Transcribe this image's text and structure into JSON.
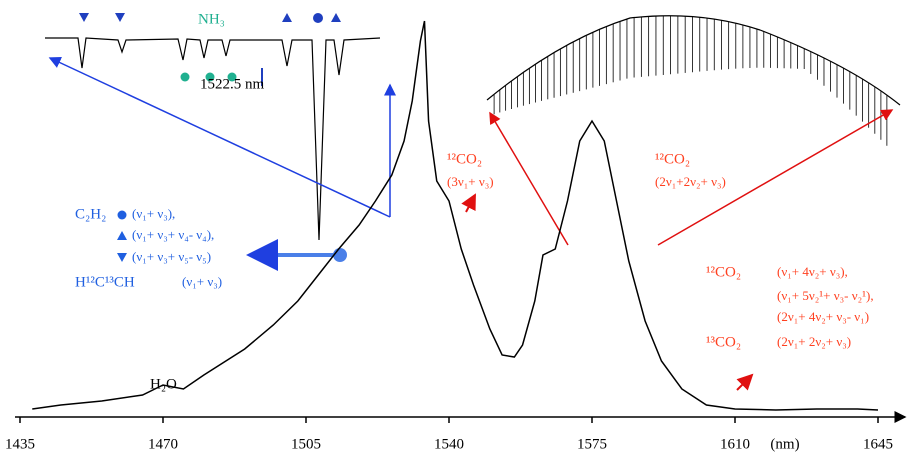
{
  "chart_data": {
    "type": "line",
    "x_label": "(nm)",
    "xlim": [
      1435,
      1645
    ],
    "xticks": [
      1435,
      1470,
      1505,
      1540,
      1575,
      1610,
      1645
    ],
    "ylim": [
      0,
      100
    ],
    "series": [
      {
        "color": "#000000",
        "x": [
          1438,
          1445,
          1455,
          1465,
          1470,
          1475,
          1480,
          1490,
          1497,
          1503,
          1508,
          1513,
          1518,
          1522,
          1526,
          1529,
          1531,
          1533,
          1534,
          1535,
          1537,
          1540,
          1543,
          1546,
          1550,
          1553,
          1556,
          1558,
          1561,
          1563,
          1566,
          1569,
          1572,
          1575,
          1578,
          1581,
          1584,
          1588,
          1592,
          1597,
          1603,
          1610,
          1620,
          1630,
          1640,
          1645
        ],
        "values": [
          2,
          3,
          4,
          5.5,
          8,
          7,
          10.5,
          17,
          23,
          29,
          35.5,
          42,
          48,
          54,
          60.5,
          69,
          79,
          94,
          99,
          74,
          59,
          54,
          42,
          33,
          22,
          15.5,
          15,
          18,
          29,
          40.5,
          42,
          54,
          69,
          74,
          69,
          54,
          39,
          24,
          14,
          7,
          3,
          2,
          1.75,
          2,
          2,
          1.75
        ]
      }
    ],
    "annotations": [
      "NH₃",
      "1522.5 nm",
      "C₂H₂",
      "(ν₁+ ν₃),",
      "(ν₁+ ν₃+ ν₄- ν₄),",
      "(ν₁+ ν₃+ ν₅- ν₅)",
      "H¹²C¹³CH",
      "(ν₁+ ν₃)",
      "H₂O",
      "¹²CO₂",
      "(3ν₁+ ν₃)",
      "¹²CO₂",
      "(2ν₁+2ν₂+ ν₃)",
      "¹²CO₂",
      "(ν₁+ 4ν₂+ ν₃),",
      "(ν₁+ 5ν₂¹+ ν₃- ν₂¹),",
      "(2ν₁+ 4ν₂+ ν₃- ν₁)",
      "¹³CO₂",
      "(2ν₁+ 2ν₂+ ν₃)"
    ]
  }
}
